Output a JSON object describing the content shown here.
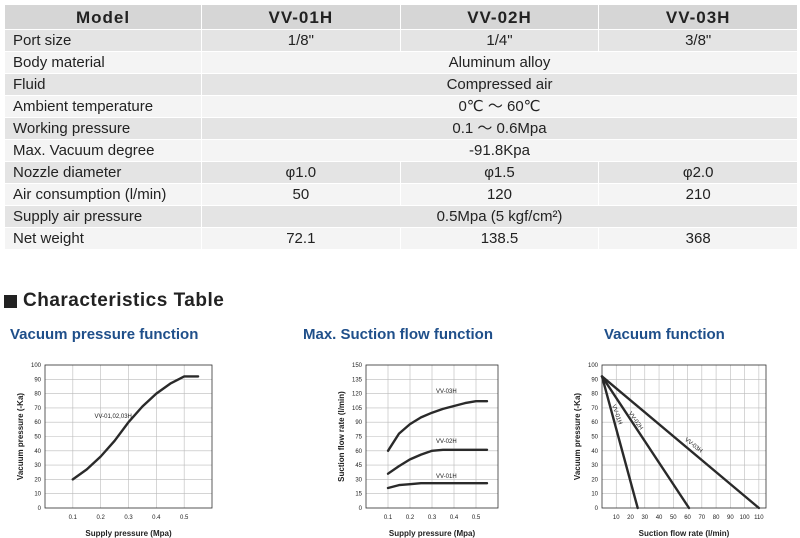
{
  "spec_table": {
    "header": [
      "Model",
      "VV-01H",
      "VV-02H",
      "VV-03H"
    ],
    "rows": [
      {
        "label": "Port size",
        "values": [
          "1/8\"",
          "1/4\"",
          "3/8\""
        ]
      },
      {
        "label": "Body material",
        "value": "Aluminum alloy"
      },
      {
        "label": "Fluid",
        "value": "Compressed air"
      },
      {
        "label": "Ambient temperature",
        "value": "0℃ ～ 60℃"
      },
      {
        "label": "Working pressure",
        "value": "0.1 ～ 0.6Mpa"
      },
      {
        "label": "Max. Vacuum degree",
        "value": "-91.8Kpa"
      },
      {
        "label": "Nozzle diameter",
        "values": [
          "φ1.0",
          "φ1.5",
          "φ2.0"
        ]
      },
      {
        "label": "Air consumption (l/min)",
        "values": [
          "50",
          "120",
          "210"
        ]
      },
      {
        "label": "Supply air pressure",
        "value": "0.5Mpa (5 kgf/cm²)"
      },
      {
        "label": "Net weight",
        "values": [
          "72.1",
          "138.5",
          "368"
        ]
      }
    ]
  },
  "section_title": "Characteristics Table",
  "chart_data": [
    {
      "type": "line",
      "title": "Vacuum pressure function",
      "xlabel": "Supply pressure (Mpa)",
      "ylabel": "Vacuum pressure (-Ka)",
      "xlim": [
        0,
        0.6
      ],
      "ylim": [
        0,
        100
      ],
      "xticks": [
        "0.1",
        "0.2",
        "0.3",
        "0.4",
        "0.5"
      ],
      "yticks": [
        "0",
        "10",
        "20",
        "30",
        "40",
        "50",
        "60",
        "70",
        "80",
        "90",
        "100"
      ],
      "grid": true,
      "series": [
        {
          "name": "VV-01,02,03H",
          "x": [
            0.1,
            0.15,
            0.2,
            0.25,
            0.3,
            0.35,
            0.4,
            0.45,
            0.5,
            0.55
          ],
          "y": [
            20,
            27,
            36,
            47,
            60,
            71,
            80,
            87,
            92,
            92
          ]
        }
      ]
    },
    {
      "type": "line",
      "title": "Max. Suction flow function",
      "xlabel": "Supply pressure (Mpa)",
      "ylabel": "Suction flow rate (l/min)",
      "xlim": [
        0,
        0.6
      ],
      "ylim": [
        0,
        150
      ],
      "xticks": [
        "0.1",
        "0.2",
        "0.3",
        "0.4",
        "0.5"
      ],
      "yticks": [
        "0",
        "15",
        "30",
        "45",
        "60",
        "75",
        "90",
        "105",
        "120",
        "135",
        "150"
      ],
      "grid": true,
      "series": [
        {
          "name": "VV-03H",
          "x": [
            0.1,
            0.15,
            0.2,
            0.25,
            0.3,
            0.35,
            0.4,
            0.45,
            0.5,
            0.55
          ],
          "y": [
            60,
            78,
            88,
            95,
            100,
            104,
            107,
            110,
            112,
            112
          ]
        },
        {
          "name": "VV-02H",
          "x": [
            0.1,
            0.15,
            0.2,
            0.25,
            0.3,
            0.35,
            0.4,
            0.45,
            0.5,
            0.55
          ],
          "y": [
            36,
            44,
            51,
            56,
            60,
            61,
            61,
            61,
            61,
            61
          ]
        },
        {
          "name": "VV-01H",
          "x": [
            0.1,
            0.15,
            0.2,
            0.25,
            0.3,
            0.35,
            0.4,
            0.45,
            0.5,
            0.55
          ],
          "y": [
            21,
            24,
            25,
            26,
            26,
            26,
            26,
            26,
            26,
            26
          ]
        }
      ]
    },
    {
      "type": "line",
      "title": "Vacuum function",
      "xlabel": "Suction flow rate (l/min)",
      "ylabel": "Vacuum pressure (-Ka)",
      "xlim": [
        0,
        115
      ],
      "ylim": [
        0,
        100
      ],
      "xticks": [
        "10",
        "20",
        "30",
        "40",
        "50",
        "60",
        "70",
        "80",
        "90",
        "100",
        "110"
      ],
      "yticks": [
        "0",
        "10",
        "20",
        "30",
        "40",
        "50",
        "60",
        "70",
        "80",
        "90",
        "100"
      ],
      "grid": true,
      "series": [
        {
          "name": "VV-01H",
          "x": [
            0,
            25
          ],
          "y": [
            92,
            0
          ]
        },
        {
          "name": "VV-02H",
          "x": [
            0,
            61
          ],
          "y": [
            92,
            0
          ]
        },
        {
          "name": "VV-03H",
          "x": [
            0,
            110
          ],
          "y": [
            92,
            0
          ]
        }
      ]
    }
  ]
}
